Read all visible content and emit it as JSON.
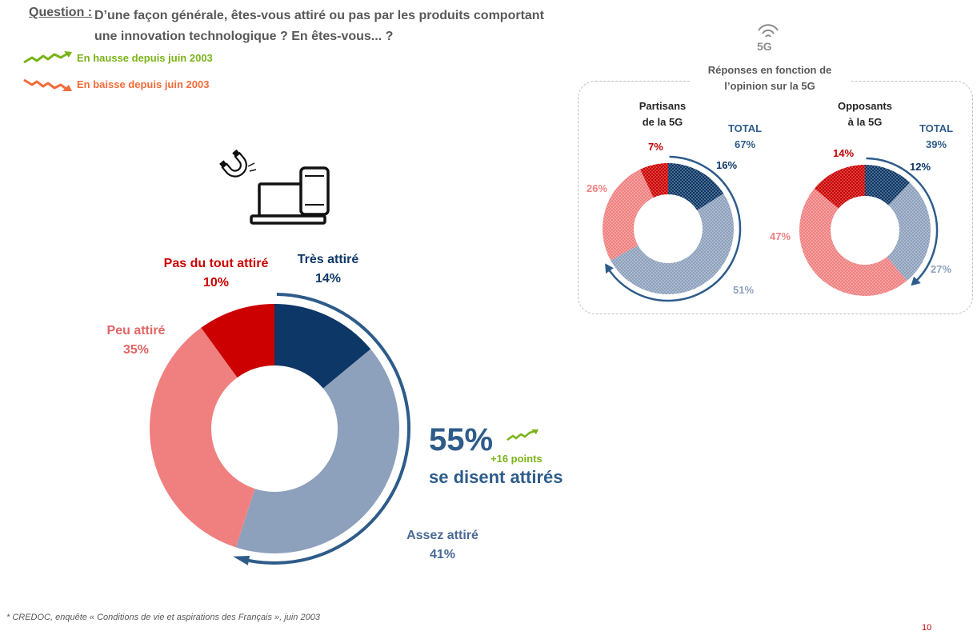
{
  "question": {
    "label": "Question",
    "sep": " :",
    "line1": "D’une façon générale, êtes-vous attiré ou pas par les produits comportant",
    "line2": "une innovation technologique ? En êtes-vous... ?"
  },
  "legend": {
    "up": "En hausse depuis juin 2003",
    "down": "En baisse depuis juin 2003"
  },
  "summary": {
    "pct": "55%",
    "delta": "+16 points",
    "text": "se disent attirés"
  },
  "box": {
    "icon_text": "5G",
    "title_line1": "Réponses en fonction de",
    "title_line2": "l’opinion sur la 5G",
    "total_label": "TOTAL"
  },
  "colors": {
    "tres": "#0d3766",
    "assez": "#8da1bd",
    "peu": "#f08080",
    "pasdutout": "#cc0000",
    "arrow": "#2e5c8a",
    "up": "#7ab317",
    "down": "#f26b3a"
  },
  "chart_data": [
    {
      "type": "pie",
      "variant": "donut",
      "categories": [
        "Très attiré",
        "Assez attiré",
        "Peu attiré",
        "Pas du tout attiré"
      ],
      "values": [
        14,
        41,
        35,
        10
      ],
      "labels": [
        "14%",
        "41%",
        "35%",
        "10%"
      ]
    },
    {
      "type": "pie",
      "variant": "donut",
      "title_line1": "Partisans",
      "title_line2": "de la 5G",
      "total": "67%",
      "categories": [
        "Très attiré",
        "Assez attiré",
        "Peu attiré",
        "Pas du tout attiré"
      ],
      "values": [
        16,
        51,
        26,
        7
      ],
      "labels": [
        "16%",
        "51%",
        "26%",
        "7%"
      ]
    },
    {
      "type": "pie",
      "variant": "donut",
      "title_line1": "Opposants",
      "title_line2": "à la 5G",
      "total": "39%",
      "categories": [
        "Très attiré",
        "Assez attiré",
        "Peu attiré",
        "Pas du tout attiré"
      ],
      "values": [
        12,
        27,
        47,
        14
      ],
      "labels": [
        "12%",
        "27%",
        "47%",
        "14%"
      ]
    }
  ],
  "footnote": "* CREDOC, enquête « Conditions de vie et aspirations des Français », juin 2003",
  "page_number": "10"
}
